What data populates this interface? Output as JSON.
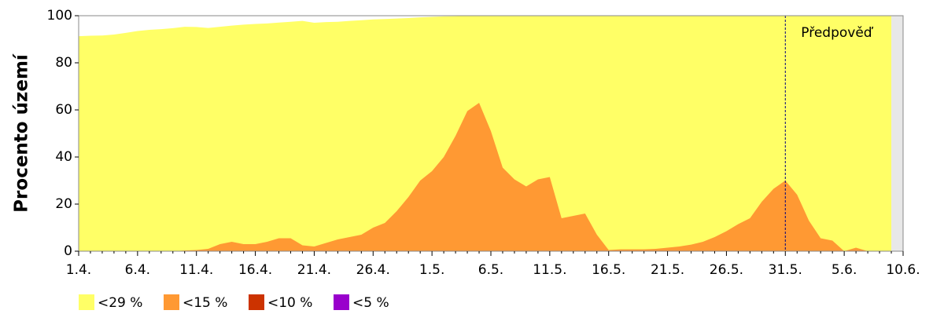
{
  "chart_data": {
    "type": "area",
    "y_label": "Procento území",
    "annotation": "Předpověď",
    "forecast_start": "31.5.",
    "categories": [
      "1.4.",
      null,
      null,
      null,
      null,
      "6.4.",
      null,
      null,
      null,
      null,
      "11.4.",
      null,
      null,
      null,
      null,
      "16.4.",
      null,
      null,
      null,
      null,
      "21.4.",
      null,
      null,
      null,
      null,
      "26.4.",
      null,
      null,
      null,
      null,
      "1.5.",
      null,
      null,
      null,
      null,
      "6.5.",
      null,
      null,
      null,
      null,
      "11.5.",
      null,
      null,
      null,
      null,
      "16.5.",
      null,
      null,
      null,
      null,
      "21.5.",
      null,
      null,
      null,
      null,
      "26.5.",
      null,
      null,
      null,
      null,
      "31.5.",
      null,
      null,
      null,
      null,
      "5.6.",
      null,
      null,
      null,
      null,
      "10.6."
    ],
    "series": [
      {
        "name": "<29 %",
        "color": "#ffff66",
        "values": [
          91.3,
          91.5,
          91.6,
          92,
          92.7,
          93.5,
          94,
          94.3,
          94.7,
          95.3,
          95.2,
          94.8,
          95.3,
          95.8,
          96.2,
          96.5,
          96.7,
          97.1,
          97.4,
          97.8,
          97,
          97.3,
          97.4,
          97.8,
          98.1,
          98.4,
          98.6,
          98.8,
          99,
          99.3,
          99.5,
          99.7,
          99.8,
          100,
          100,
          100,
          100,
          100,
          100,
          100,
          100,
          100,
          100,
          100,
          100,
          100,
          100,
          100,
          100,
          100,
          100,
          100,
          100,
          100,
          100,
          100,
          100,
          100,
          100,
          100,
          100,
          100,
          100,
          100,
          100,
          100,
          100,
          100,
          100,
          100,
          null
        ]
      },
      {
        "name": "<15 %",
        "color": "#ff9933",
        "values": [
          0,
          0,
          0,
          0,
          0,
          0,
          0,
          0,
          0,
          0.3,
          0.5,
          1,
          3,
          4,
          3,
          3,
          4,
          5.5,
          5.5,
          2.5,
          2,
          3.5,
          5,
          6,
          7,
          10,
          12,
          17,
          23,
          30,
          34,
          40,
          49,
          59.5,
          63,
          51,
          35.5,
          30.5,
          27.5,
          30.5,
          31.5,
          14,
          15,
          16,
          7,
          0.5,
          0.8,
          0.8,
          0.8,
          1,
          1.5,
          2,
          2.8,
          4,
          6,
          8.5,
          11.5,
          14,
          21,
          26.5,
          30,
          24,
          13,
          5.5,
          4.5,
          0,
          1.5,
          0,
          0,
          0,
          null
        ]
      },
      {
        "name": "<10 %",
        "color": "#cc3300",
        "values": [
          0,
          0,
          0,
          0,
          0,
          0,
          0,
          0,
          0,
          0,
          0,
          0,
          0,
          0,
          0,
          0,
          0,
          0,
          0,
          0,
          0,
          0,
          0,
          0,
          0,
          0,
          0,
          0,
          0,
          0,
          0,
          0,
          0,
          0,
          0,
          0,
          0,
          0,
          0,
          0,
          0,
          0,
          0,
          0,
          0,
          0,
          0,
          0,
          0,
          0,
          0,
          0,
          0,
          0,
          0,
          0,
          0,
          0,
          0,
          0,
          0,
          0,
          0,
          0,
          0,
          0,
          0,
          0,
          0,
          0,
          null
        ]
      },
      {
        "name": "<5 %",
        "color": "#9900cc",
        "values": [
          0,
          0,
          0,
          0,
          0,
          0,
          0,
          0,
          0,
          0,
          0,
          0,
          0,
          0,
          0,
          0,
          0,
          0,
          0,
          0,
          0,
          0,
          0,
          0,
          0,
          0,
          0,
          0,
          0,
          0,
          0,
          0,
          0,
          0,
          0,
          0,
          0,
          0,
          0,
          0,
          0,
          0,
          0,
          0,
          0,
          0,
          0,
          0,
          0,
          0,
          0,
          0,
          0,
          0,
          0,
          0,
          0,
          0,
          0,
          0,
          0,
          0,
          0,
          0,
          0,
          0,
          0,
          0,
          0,
          0,
          null
        ]
      }
    ],
    "ylim": [
      0,
      100
    ],
    "yticks": [
      0,
      20,
      40,
      60,
      80,
      100
    ]
  }
}
